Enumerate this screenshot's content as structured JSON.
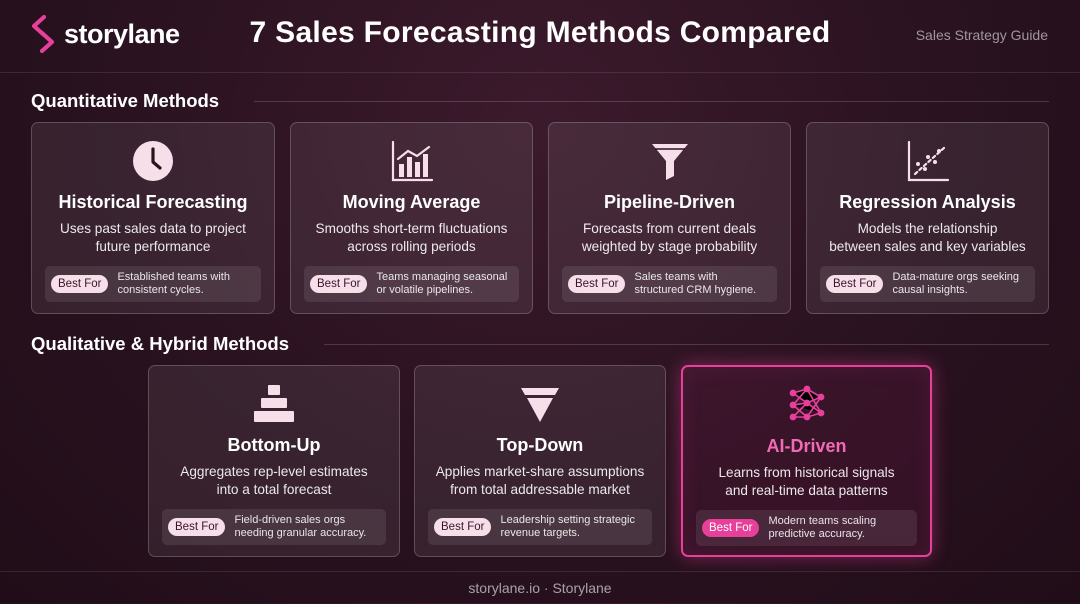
{
  "brand": {
    "name": "storylane",
    "accent": "#e6409a"
  },
  "header": {
    "title": "7 Sales Forecasting Methods Compared",
    "subtitle": "Sales Strategy Guide"
  },
  "sections": [
    {
      "title": "Quantitative Methods"
    },
    {
      "title": "Qualitative & Hybrid Methods"
    }
  ],
  "badge_label": "Best For",
  "cards": [
    {
      "icon": "clock-icon",
      "title": "Historical Forecasting",
      "desc1": "Uses past sales data to project",
      "desc2": "future performance",
      "best1": "Established teams with",
      "best2": "consistent cycles."
    },
    {
      "icon": "bar-chart-icon",
      "title": "Moving Average",
      "desc1": "Smooths short-term fluctuations",
      "desc2": "across rolling periods",
      "best1": "Teams managing seasonal",
      "best2": "or volatile pipelines."
    },
    {
      "icon": "funnel-icon",
      "title": "Pipeline-Driven",
      "desc1": "Forecasts from current deals",
      "desc2": "weighted by stage probability",
      "best1": "Sales teams with",
      "best2": "structured CRM hygiene."
    },
    {
      "icon": "scatter-plot-icon",
      "title": "Regression Analysis",
      "desc1": "Models the relationship",
      "desc2": "between sales and key variables",
      "best1": "Data-mature orgs seeking",
      "best2": "causal insights."
    },
    {
      "icon": "stacked-blocks-icon",
      "title": "Bottom-Up",
      "desc1": "Aggregates rep-level estimates",
      "desc2": "into a total forecast",
      "best1": "Field-driven sales orgs",
      "best2": "needing granular accuracy."
    },
    {
      "icon": "inverted-triangle-icon",
      "title": "Top-Down",
      "desc1": "Applies market-share assumptions",
      "desc2": "from total addressable market",
      "best1": "Leadership setting strategic",
      "best2": "revenue targets."
    },
    {
      "icon": "neural-network-icon",
      "title": "AI-Driven",
      "desc1": "Learns from historical signals",
      "desc2": "and real-time data patterns",
      "best1": "Modern teams scaling",
      "best2": "predictive accuracy."
    }
  ],
  "footer": {
    "text": "storylane.io · Storylane"
  }
}
